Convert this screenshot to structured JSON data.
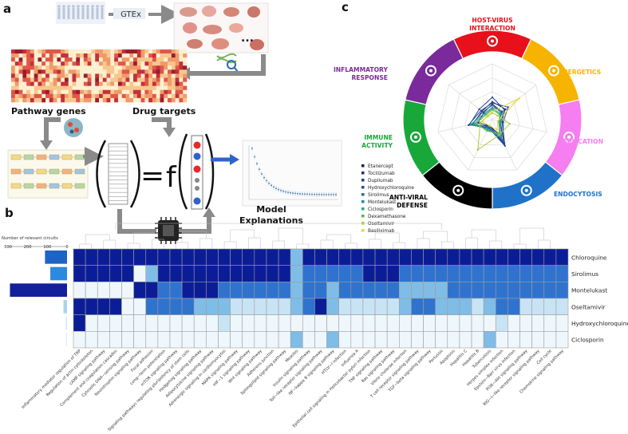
{
  "panels": {
    "a": "a",
    "b": "b",
    "c": "c"
  },
  "panel_a": {
    "source_label": "GTEx",
    "pathway_genes": "Pathway genes",
    "drug_targets": "Drug targets",
    "equation_equals": "=",
    "equation_f": "f",
    "ellipsis": "...",
    "model_explanations_1": "Model",
    "model_explanations_2": "Explanations"
  },
  "panel_c": {
    "categories": [
      {
        "lines": [
          "HOST-VIRUS",
          "INTERACTION"
        ],
        "color": "#e8101a",
        "icon": "virus-lungs-icon"
      },
      {
        "lines": [
          "ENERGETICS"
        ],
        "color": "#f6b400",
        "icon": "gear-icon"
      },
      {
        "lines": [
          "REPLICATION"
        ],
        "color": "#f57ef0",
        "icon": "replication-arrows-icon"
      },
      {
        "lines": [
          "ENDOCYTOSIS"
        ],
        "color": "#1f72c8",
        "icon": "cell-icon"
      },
      {
        "lines": [
          "ANTI-VIRAL",
          "DEFENSE"
        ],
        "color": "#000000",
        "icon": "shield-virus-icon"
      },
      {
        "lines": [
          "IMMUNE",
          "ACTIVITY"
        ],
        "color": "#18a83a",
        "icon": "syringe-icon"
      },
      {
        "lines": [
          "INFLAMMATORY",
          "RESPONSE"
        ],
        "color": "#7a2a9a",
        "icon": "drop-icon"
      }
    ],
    "legend": [
      {
        "name": "Etanercept",
        "color": "#1a1a6e"
      },
      {
        "name": "Tocilizumab",
        "color": "#28287e"
      },
      {
        "name": "Dupilumab",
        "color": "#1f3e95"
      },
      {
        "name": "Hydroxychloroquine",
        "color": "#264d86"
      },
      {
        "name": "Sirolimus",
        "color": "#2a6d93"
      },
      {
        "name": "Montelukast",
        "color": "#2b8aa0"
      },
      {
        "name": "Ciclosporin",
        "color": "#2aa88b"
      },
      {
        "name": "Dexamethasone",
        "color": "#58b64a"
      },
      {
        "name": "Oseltamivir",
        "color": "#a8cc3c"
      },
      {
        "name": "Basiliximab",
        "color": "#e8d63a"
      }
    ]
  },
  "panel_b": {
    "bar_axis_title": "Number of relevant circuits",
    "bar_axis_ticks": [
      300,
      200,
      100,
      0
    ]
  },
  "chart_data": [
    {
      "type": "bar",
      "orientation": "horizontal",
      "title": "",
      "xlabel": "Number of relevant circuits",
      "ylabel": "",
      "xlim": [
        0,
        300
      ],
      "categories": [
        "Chloroquine",
        "Sirolimus",
        "Montelukast",
        "Oseltamivir",
        "Hydroxychloroquine",
        "Ciclosporin"
      ],
      "values": [
        112,
        85,
        290,
        18,
        6,
        4
      ],
      "colors": [
        "#1e63c6",
        "#2a8ae0",
        "#141f9a",
        "#a9d4f0",
        "#cfe4f5",
        "#dbeaf7"
      ]
    },
    {
      "type": "heatmap",
      "rows": [
        "Chloroquine",
        "Sirolimus",
        "Montelukast",
        "Oseltamivir",
        "Hydroxychloroquine",
        "Ciclosporin"
      ],
      "columns": [
        "Inflammatory mediator regulation of TRP",
        "Regulation of actin cytoskeleton",
        "cAMP signaling pathway",
        "Complement and coagulation cascades",
        "Cytosolic DNA−sensing pathway",
        "Neurotrophin signaling pathway",
        "Focal adhesion",
        "Long−term potentiation",
        "mTOR signaling pathway",
        "Signaling pathways regulating pluripotency of stem cells",
        "Hedgehog signaling pathway",
        "Adipocytokine signaling pathway",
        "Adrenergic signaling in cardiomyocytes",
        "MAPK signaling pathway",
        "HIF−1 signaling pathway",
        "Wnt signaling pathway",
        "Adherens junction",
        "Sphingolipid signaling pathway",
        "Measles",
        "Insulin signaling pathway",
        "Toll−like receptor signaling pathway",
        "NF−kappa B signaling pathway",
        "HTLV−I infection",
        "Influenza A",
        "Epithelial cell signaling in Helicobacter pylori infection",
        "TNF signaling pathway",
        "Ras signaling pathway",
        "Vibrio cholerae infection",
        "T cell receptor signaling pathway",
        "TGF−beta signaling pathway",
        "Pertussis",
        "Apoptosis",
        "Hepatitis C",
        "Hepatitis B",
        "Tuberculosis",
        "Herpes simplex infection",
        "Epstein−Barr virus infection",
        "PI3K−Akt signaling pathway",
        "RIG−I−like receptor signaling pathway",
        "Cell cycle",
        "Chemokine signaling pathway"
      ],
      "values": [
        [
          4,
          4,
          4,
          4,
          4,
          4,
          4,
          4,
          4,
          4,
          4,
          4,
          4,
          4,
          4,
          4,
          4,
          4,
          2,
          4,
          4,
          4,
          4,
          4,
          4,
          4,
          4,
          4,
          4,
          4,
          4,
          4,
          4,
          4,
          4,
          4,
          4,
          4,
          4,
          4,
          4
        ],
        [
          4,
          4,
          4,
          4,
          4,
          0,
          2,
          4,
          4,
          4,
          4,
          4,
          4,
          4,
          4,
          4,
          4,
          4,
          2,
          3,
          3,
          3,
          3,
          3,
          4,
          4,
          4,
          3,
          3,
          3,
          3,
          3,
          3,
          3,
          3,
          3,
          3,
          3,
          3,
          3,
          3
        ],
        [
          0,
          0,
          0,
          0,
          0,
          4,
          4,
          3,
          3,
          4,
          4,
          4,
          3,
          3,
          3,
          3,
          3,
          3,
          2,
          3,
          3,
          2,
          3,
          3,
          3,
          3,
          3,
          2,
          2,
          2,
          2,
          3,
          3,
          3,
          3,
          3,
          3,
          3,
          3,
          3,
          3
        ],
        [
          4,
          4,
          4,
          4,
          0,
          0,
          3,
          3,
          3,
          3,
          2,
          2,
          2,
          1,
          1,
          1,
          1,
          1,
          2,
          3,
          4,
          2,
          1,
          1,
          1,
          1,
          1,
          2,
          3,
          3,
          2,
          2,
          2,
          1,
          2,
          3,
          3,
          1,
          1,
          1,
          1
        ],
        [
          4,
          0,
          0,
          0,
          0,
          0,
          0,
          0,
          0,
          0,
          0,
          0,
          1,
          0,
          0,
          0,
          0,
          0,
          0,
          0,
          0,
          0,
          0,
          0,
          0,
          0,
          0,
          0,
          0,
          0,
          0,
          0,
          0,
          0,
          0,
          1,
          0,
          0,
          0,
          0,
          0
        ],
        [
          0,
          0,
          0,
          0,
          0,
          0,
          0,
          0,
          0,
          0,
          0,
          0,
          0,
          0,
          0,
          0,
          0,
          0,
          2,
          0,
          0,
          2,
          0,
          0,
          0,
          0,
          0,
          0,
          0,
          0,
          0,
          0,
          0,
          0,
          2,
          0,
          0,
          0,
          0,
          0,
          0
        ]
      ],
      "palette": [
        "#eef7fc",
        "#c8e4f4",
        "#7fbde6",
        "#2f73cf",
        "#0b1d96"
      ]
    },
    {
      "type": "radar",
      "title": "",
      "axes": [
        "HOST-VIRUS INTERACTION",
        "ENERGETICS",
        "REPLICATION",
        "ENDOCYTOSIS",
        "ANTI-VIRAL DEFENSE",
        "IMMUNE ACTIVITY",
        "INFLAMMATORY RESPONSE"
      ],
      "rmax": 1,
      "series": [
        {
          "name": "Etanercept",
          "values": [
            0.28,
            0.22,
            0.12,
            0.3,
            0.12,
            0.26,
            0.2
          ]
        },
        {
          "name": "Tocilizumab",
          "values": [
            0.32,
            0.3,
            0.15,
            0.48,
            0.14,
            0.36,
            0.24
          ]
        },
        {
          "name": "Dupilumab",
          "values": [
            0.4,
            0.28,
            0.18,
            0.52,
            0.16,
            0.42,
            0.3
          ]
        },
        {
          "name": "Hydroxychloroquine",
          "values": [
            0.3,
            0.36,
            0.2,
            0.45,
            0.12,
            0.44,
            0.26
          ]
        },
        {
          "name": "Sirolimus",
          "values": [
            0.26,
            0.2,
            0.14,
            0.4,
            0.14,
            0.38,
            0.22
          ]
        },
        {
          "name": "Montelukast",
          "values": [
            0.22,
            0.24,
            0.16,
            0.36,
            0.18,
            0.4,
            0.18
          ]
        },
        {
          "name": "Ciclosporin",
          "values": [
            0.2,
            0.18,
            0.12,
            0.32,
            0.2,
            0.34,
            0.16
          ]
        },
        {
          "name": "Dexamethasone",
          "values": [
            0.18,
            0.16,
            0.14,
            0.28,
            0.22,
            0.3,
            0.14
          ]
        },
        {
          "name": "Oseltamivir",
          "values": [
            0.12,
            0.12,
            0.32,
            0.3,
            0.6,
            0.22,
            0.1
          ]
        },
        {
          "name": "Basiliximab",
          "values": [
            0.14,
            0.62,
            0.1,
            0.2,
            0.12,
            0.18,
            0.12
          ]
        }
      ]
    }
  ]
}
